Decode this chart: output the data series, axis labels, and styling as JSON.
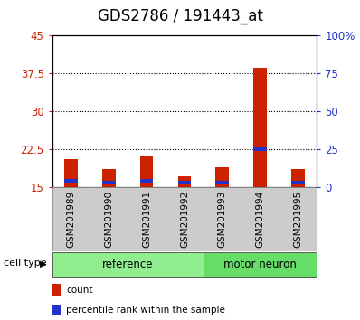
{
  "title": "GDS2786 / 191443_at",
  "samples": [
    "GSM201989",
    "GSM201990",
    "GSM201991",
    "GSM201992",
    "GSM201993",
    "GSM201994",
    "GSM201995"
  ],
  "red_values": [
    20.5,
    18.5,
    21.0,
    17.2,
    19.0,
    38.5,
    18.5
  ],
  "blue_values": [
    16.2,
    16.0,
    16.2,
    15.9,
    16.0,
    22.5,
    16.0
  ],
  "bar_base": 15,
  "ylim_left": [
    15,
    45
  ],
  "ylim_right": [
    0,
    100
  ],
  "yticks_left": [
    15,
    22.5,
    30,
    37.5,
    45
  ],
  "ytick_labels_left": [
    "15",
    "22.5",
    "30",
    "37.5",
    "45"
  ],
  "yticks_right": [
    0,
    25,
    50,
    75,
    100
  ],
  "ytick_labels_right": [
    "0",
    "25",
    "50",
    "75",
    "100%"
  ],
  "ref_samples": [
    0,
    1,
    2,
    3
  ],
  "mn_samples": [
    4,
    5,
    6
  ],
  "group_label": "cell type",
  "red_color": "#cc2200",
  "blue_color": "#2233cc",
  "bar_width": 0.35,
  "blue_bar_height": 0.7,
  "sample_box_color": "#cccccc",
  "sample_box_edge": "#888888",
  "ref_color": "#90ee90",
  "mn_color": "#66dd66",
  "grid_color": "#000000",
  "title_fontsize": 12,
  "tick_fontsize": 8.5,
  "sample_fontsize": 7.5,
  "group_fontsize": 8.5,
  "legend_fontsize": 7.5
}
